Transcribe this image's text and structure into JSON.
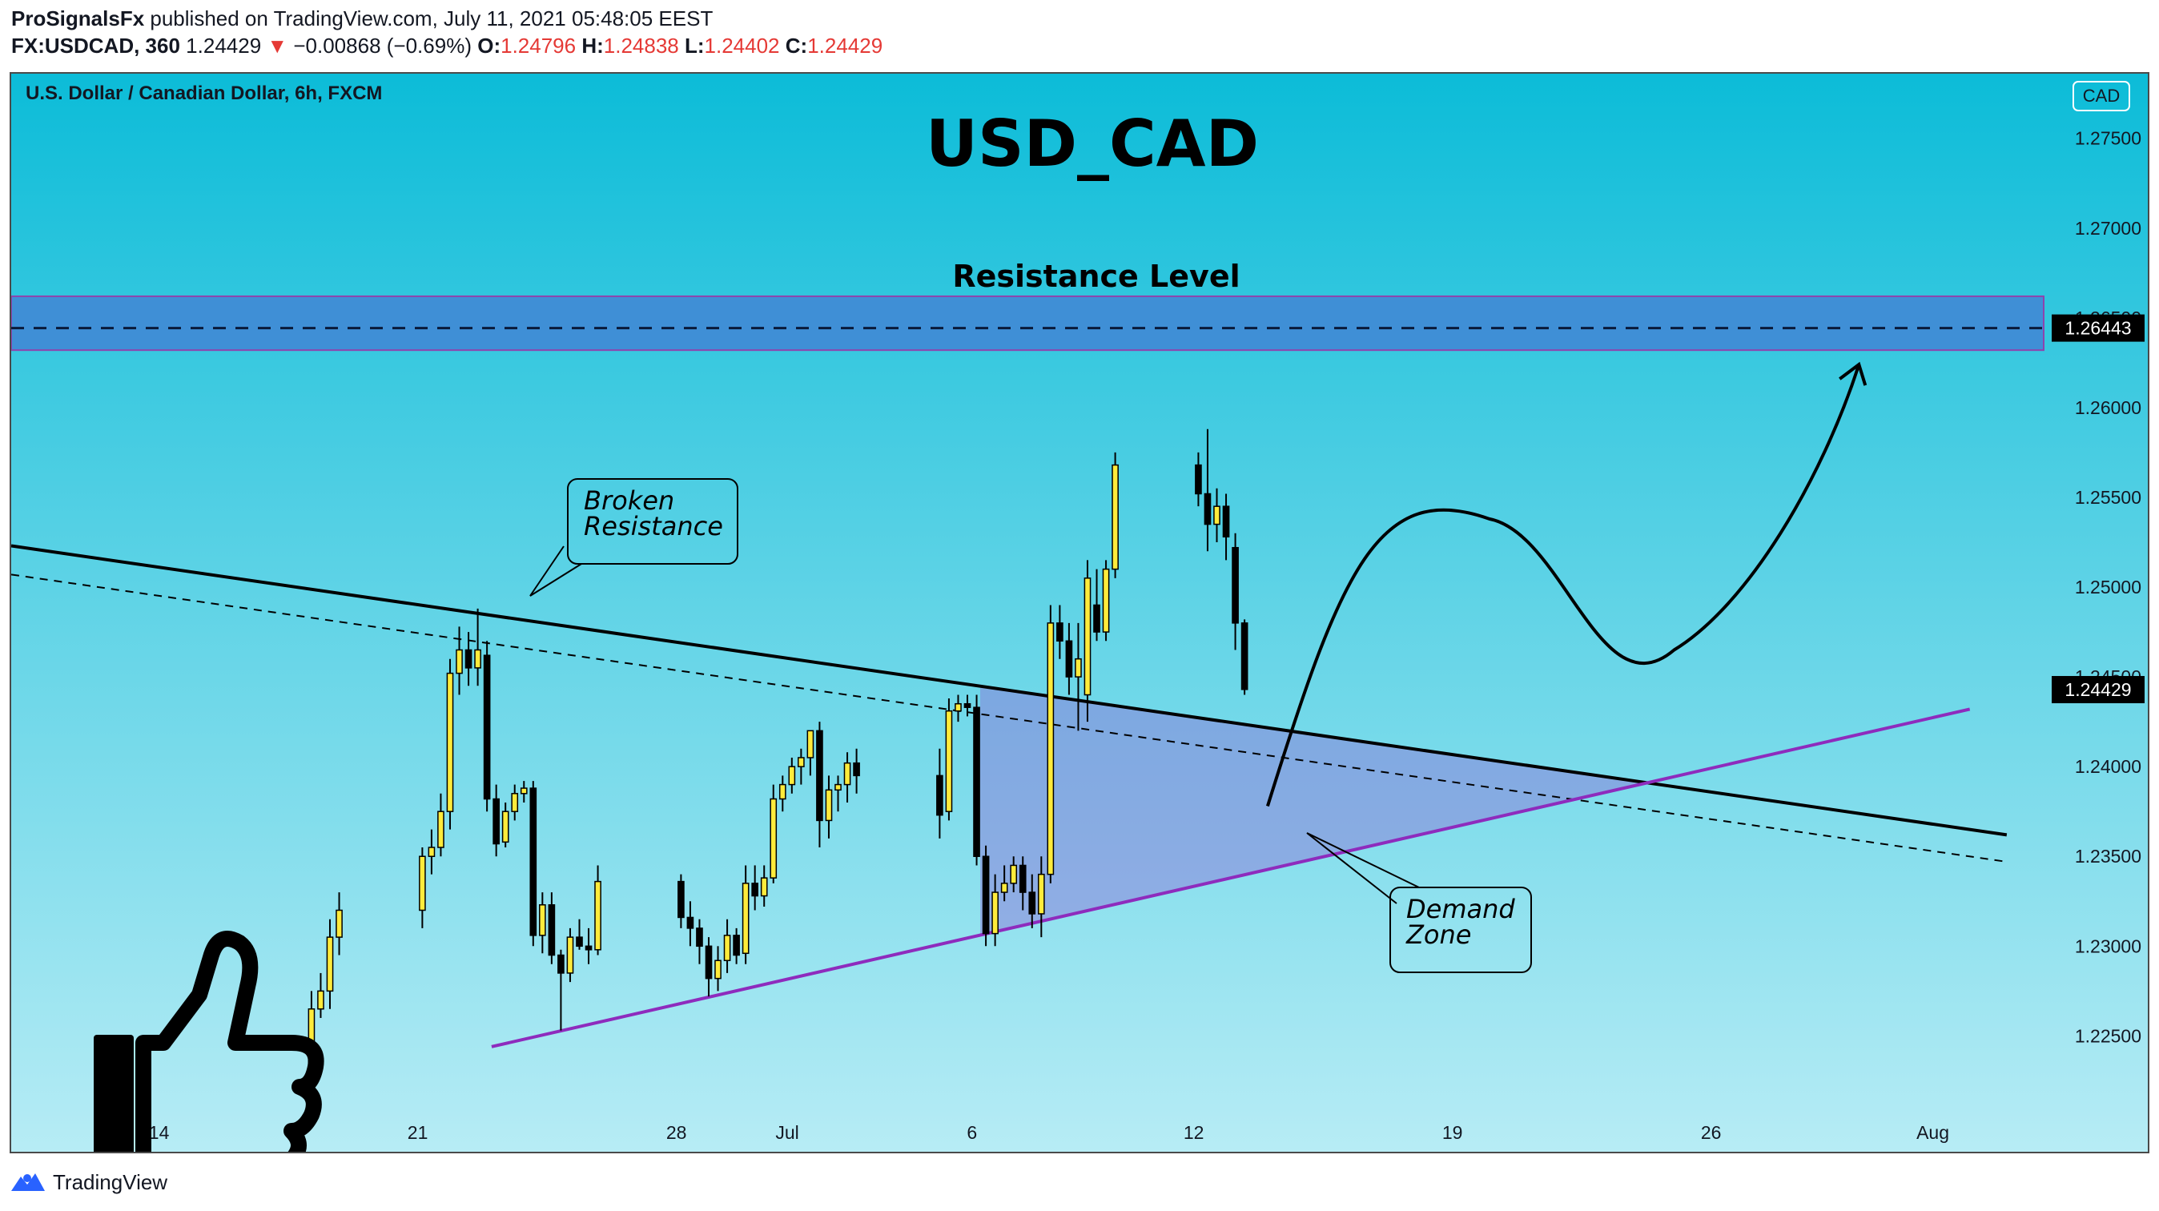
{
  "header": {
    "author": "ProSignalsFx",
    "published_text": "published on TradingView.com, July 11, 2021 05:48:05 EEST",
    "symbol": "FX:USDCAD, 360",
    "last_price": "1.24429",
    "change_arrow": "▼",
    "change": "−0.00868 (−0.69%)",
    "o_label": "O:",
    "o_value": "1.24796",
    "h_label": "H:",
    "h_value": "1.24838",
    "l_label": "L:",
    "l_value": "1.24402",
    "c_label": "C:",
    "c_value": "1.24429"
  },
  "footer": {
    "brand": "TradingView",
    "logo_icon": "tradingview-logo-icon"
  },
  "chart_data": {
    "type": "candlestick",
    "instrument": "U.S. Dollar / Canadian Dollar, 6h, FXCM",
    "title": "USD_CAD",
    "currency_badge": "CAD",
    "y_ticks": [
      1.275,
      1.27,
      1.265,
      1.26,
      1.255,
      1.25,
      1.245,
      1.24,
      1.235,
      1.23,
      1.225
    ],
    "y_tick_labels": [
      "1.27500",
      "1.27000",
      "1.26500",
      "1.26000",
      "1.25500",
      "1.25000",
      "1.24500",
      "1.24000",
      "1.23500",
      "1.23000",
      "1.22500"
    ],
    "ylim": [
      1.2206,
      1.2786
    ],
    "x_tick_labels": [
      "14",
      "21",
      "28",
      "Jul",
      "6",
      "12",
      "19",
      "26",
      "Aug"
    ],
    "x_ticks": [
      "2021-06-14",
      "2021-06-21",
      "2021-06-28",
      "2021-07-01",
      "2021-07-06",
      "2021-07-12",
      "2021-07-19",
      "2021-07-26",
      "2021-08-01"
    ],
    "xlim": [
      "2021-06-10",
      "2021-08-04"
    ],
    "price_markers": [
      {
        "value": 1.26443,
        "label": "1.26443"
      },
      {
        "value": 1.24429,
        "label": "1.24429"
      }
    ],
    "resistance_zone": {
      "label": "Resistance Level",
      "low": 1.2632,
      "high": 1.2662,
      "level": 1.26443
    },
    "annotations": [
      "Broken Resistance",
      "Demand Zone"
    ],
    "trendlines": [
      {
        "name": "resistance",
        "from": [
          "2021-06-10",
          1.2523
        ],
        "to": [
          "2021-08-03",
          1.2362
        ]
      },
      {
        "name": "resistance-parallel",
        "from": [
          "2021-06-10",
          1.2507
        ],
        "to": [
          "2021-08-03",
          1.2347
        ]
      },
      {
        "name": "support",
        "from": [
          "2021-06-23",
          1.2244
        ],
        "to": [
          "2021-08-02",
          1.2432
        ]
      }
    ],
    "candles": [
      [
        1.2228,
        1.2275,
        1.2218,
        1.2265
      ],
      [
        1.2265,
        1.2285,
        1.226,
        1.2275
      ],
      [
        1.2275,
        1.2315,
        1.2265,
        1.2305
      ],
      [
        1.2305,
        1.233,
        1.2295,
        1.232
      ],
      [
        1.232,
        1.2355,
        1.231,
        1.235
      ],
      [
        1.235,
        1.2365,
        1.234,
        1.2355
      ],
      [
        1.2355,
        1.2385,
        1.235,
        1.2375
      ],
      [
        1.2375,
        1.246,
        1.2365,
        1.2452
      ],
      [
        1.2452,
        1.2478,
        1.244,
        1.2465
      ],
      [
        1.2465,
        1.2475,
        1.2445,
        1.2455
      ],
      [
        1.2455,
        1.2488,
        1.2445,
        1.2465
      ],
      [
        1.2462,
        1.247,
        1.2375,
        1.2382
      ],
      [
        1.2382,
        1.239,
        1.235,
        1.2357
      ],
      [
        1.2358,
        1.238,
        1.2355,
        1.2375
      ],
      [
        1.2375,
        1.239,
        1.237,
        1.2385
      ],
      [
        1.2385,
        1.2392,
        1.238,
        1.2388
      ],
      [
        1.2388,
        1.2392,
        1.23,
        1.2306
      ],
      [
        1.2306,
        1.233,
        1.2296,
        1.2323
      ],
      [
        1.2323,
        1.233,
        1.229,
        1.2295
      ],
      [
        1.2295,
        1.2298,
        1.2253,
        1.2285
      ],
      [
        1.2285,
        1.231,
        1.228,
        1.2305
      ],
      [
        1.2305,
        1.2315,
        1.2298,
        1.23
      ],
      [
        1.23,
        1.231,
        1.229,
        1.2298
      ],
      [
        1.2298,
        1.2345,
        1.2295,
        1.2336
      ],
      [
        1.2336,
        1.234,
        1.231,
        1.2316
      ],
      [
        1.2316,
        1.2325,
        1.23,
        1.231
      ],
      [
        1.231,
        1.2315,
        1.229,
        1.23
      ],
      [
        1.23,
        1.2305,
        1.2272,
        1.2282
      ],
      [
        1.2282,
        1.23,
        1.2275,
        1.2292
      ],
      [
        1.2292,
        1.2315,
        1.2285,
        1.2306
      ],
      [
        1.2306,
        1.231,
        1.229,
        1.2295
      ],
      [
        1.2296,
        1.2345,
        1.229,
        1.2335
      ],
      [
        1.2335,
        1.2345,
        1.232,
        1.2328
      ],
      [
        1.2328,
        1.2345,
        1.2322,
        1.2338
      ],
      [
        1.2338,
        1.239,
        1.2335,
        1.2382
      ],
      [
        1.2382,
        1.2395,
        1.2375,
        1.239
      ],
      [
        1.239,
        1.2405,
        1.2385,
        1.24
      ],
      [
        1.24,
        1.241,
        1.239,
        1.2405
      ],
      [
        1.2405,
        1.242,
        1.2395,
        1.242
      ],
      [
        1.242,
        1.2425,
        1.2355,
        1.237
      ],
      [
        1.237,
        1.2395,
        1.236,
        1.2387
      ],
      [
        1.2387,
        1.2395,
        1.2375,
        1.239
      ],
      [
        1.239,
        1.2408,
        1.238,
        1.2402
      ],
      [
        1.2402,
        1.241,
        1.2385,
        1.2395
      ],
      [
        1.2395,
        1.241,
        1.236,
        1.2373
      ],
      [
        1.2375,
        1.2438,
        1.237,
        1.2431
      ],
      [
        1.2431,
        1.244,
        1.2425,
        1.2435
      ],
      [
        1.2435,
        1.244,
        1.2428,
        1.2433
      ],
      [
        1.2433,
        1.244,
        1.2345,
        1.235
      ],
      [
        1.235,
        1.2356,
        1.23,
        1.2307
      ],
      [
        1.2307,
        1.234,
        1.23,
        1.233
      ],
      [
        1.233,
        1.2345,
        1.2325,
        1.2335
      ],
      [
        1.2335,
        1.235,
        1.233,
        1.2345
      ],
      [
        1.2345,
        1.235,
        1.232,
        1.233
      ],
      [
        1.233,
        1.234,
        1.231,
        1.2318
      ],
      [
        1.2318,
        1.235,
        1.2305,
        1.234
      ],
      [
        1.234,
        1.249,
        1.2335,
        1.248
      ],
      [
        1.248,
        1.249,
        1.246,
        1.247
      ],
      [
        1.247,
        1.248,
        1.244,
        1.245
      ],
      [
        1.245,
        1.248,
        1.242,
        1.246
      ],
      [
        1.244,
        1.2515,
        1.2425,
        1.2505
      ],
      [
        1.249,
        1.251,
        1.247,
        1.2475
      ],
      [
        1.2475,
        1.2515,
        1.247,
        1.251
      ],
      [
        1.251,
        1.2575,
        1.2505,
        1.2568
      ],
      [
        1.2568,
        1.2575,
        1.2545,
        1.2552
      ],
      [
        1.2552,
        1.2588,
        1.252,
        1.2535
      ],
      [
        1.2535,
        1.2555,
        1.2525,
        1.2545
      ],
      [
        1.2545,
        1.2552,
        1.2515,
        1.2528
      ],
      [
        1.2522,
        1.253,
        1.2465,
        1.248
      ],
      [
        1.248,
        1.2482,
        1.244,
        1.2443
      ]
    ]
  }
}
